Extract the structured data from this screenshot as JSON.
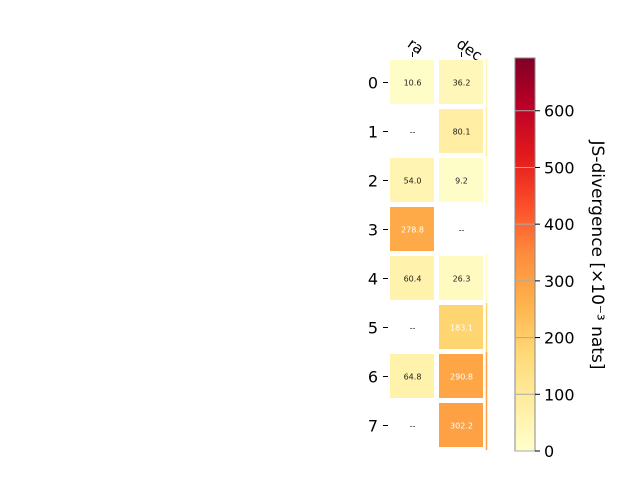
{
  "chart_data": {
    "type": "heatmap",
    "columns": [
      "ra",
      "dec"
    ],
    "rows": [
      "0",
      "1",
      "2",
      "3",
      "4",
      "5",
      "6",
      "7"
    ],
    "values": [
      [
        10.6,
        36.2
      ],
      [
        null,
        80.1
      ],
      [
        54.0,
        9.2
      ],
      [
        278.8,
        null
      ],
      [
        60.4,
        26.3
      ],
      [
        null,
        183.1
      ],
      [
        64.8,
        290.8
      ],
      [
        null,
        302.2
      ]
    ],
    "labels": [
      [
        "10.6",
        "36.2"
      ],
      [
        "--",
        "80.1"
      ],
      [
        "54.0",
        "9.2"
      ],
      [
        "278.8",
        "--"
      ],
      [
        "60.4",
        "26.3"
      ],
      [
        "--",
        "183.1"
      ],
      [
        "64.8",
        "290.8"
      ],
      [
        "--",
        "302.2"
      ]
    ],
    "colormap": "YlOrRd",
    "colorbar": {
      "label": "JS-divergence [×10⁻³ nats]",
      "range": [
        0,
        693
      ],
      "ticks": [
        0,
        100,
        200,
        300,
        400,
        500,
        600
      ],
      "tick_labels": [
        "0",
        "100",
        "200",
        "300",
        "400",
        "500",
        "600"
      ]
    }
  }
}
